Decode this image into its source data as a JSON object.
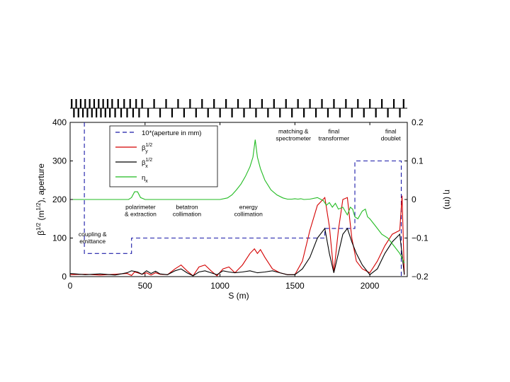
{
  "chart_data": {
    "type": "line",
    "xlabel": "S (m)",
    "ylabel": "β^1/2 (m^1/2), aperture",
    "y2label": "η (m)",
    "xlim": [
      0,
      2250
    ],
    "ylim": [
      0,
      400
    ],
    "y2lim": [
      -0.2,
      0.2
    ],
    "xticks": [
      0,
      500,
      1000,
      1500,
      2000
    ],
    "yticks": [
      0,
      100,
      200,
      300,
      400
    ],
    "y2ticks": [
      -0.2,
      -0.1,
      0,
      0.1,
      0.2
    ],
    "grid": false,
    "legend_position": "top-left",
    "legend": [
      {
        "text": "10*(aperture in mm)",
        "color": "#1a1aa8",
        "dash": true
      },
      {
        "text": "β",
        "sub": "y",
        "sup": "1/2",
        "color": "#d40000"
      },
      {
        "text": "β",
        "sub": "x",
        "sup": "1/2",
        "color": "#000000"
      },
      {
        "text": "η",
        "sub": "x",
        "color": "#22bb22"
      }
    ],
    "annotations": [
      {
        "lines": [
          "coupling &",
          "emittance"
        ],
        "x": 150,
        "y": 105
      },
      {
        "lines": [
          "polarimeter",
          "& extraction"
        ],
        "x": 470,
        "y": 175
      },
      {
        "lines": [
          "betatron",
          "collimation"
        ],
        "x": 780,
        "y": 175
      },
      {
        "lines": [
          "energy",
          "collimation"
        ],
        "x": 1190,
        "y": 175
      },
      {
        "lines": [
          "matching &",
          "spectrometer"
        ],
        "x": 1490,
        "y": 372
      },
      {
        "lines": [
          "final",
          "transformer"
        ],
        "x": 1760,
        "y": 372
      },
      {
        "lines": [
          "final",
          "doublet"
        ],
        "x": 2140,
        "y": 372
      }
    ],
    "series": [
      {
        "key": "aperture",
        "axis": "left",
        "color": "#1a1aa8",
        "dash": true,
        "x": [
          95,
          95,
          410,
          410,
          1700,
          1700,
          1900,
          1900,
          2210,
          2210
        ],
        "y": [
          400,
          60,
          60,
          100,
          100,
          125,
          125,
          300,
          300,
          0
        ]
      },
      {
        "key": "beta_y",
        "axis": "left",
        "color": "#d40000",
        "x": [
          0,
          100,
          200,
          300,
          380,
          410,
          430,
          450,
          480,
          510,
          540,
          570,
          600,
          650,
          700,
          740,
          780,
          820,
          860,
          900,
          940,
          980,
          1020,
          1060,
          1100,
          1150,
          1200,
          1230,
          1250,
          1270,
          1300,
          1350,
          1400,
          1450,
          1500,
          1550,
          1600,
          1650,
          1700,
          1730,
          1760,
          1790,
          1820,
          1850,
          1880,
          1910,
          1950,
          2000,
          2050,
          2100,
          2150,
          2200,
          2215,
          2230
        ],
        "y": [
          5,
          6,
          4,
          6,
          8,
          3,
          12,
          10,
          6,
          10,
          4,
          10,
          6,
          5,
          20,
          30,
          15,
          2,
          25,
          30,
          15,
          2,
          20,
          25,
          10,
          30,
          60,
          72,
          60,
          70,
          50,
          20,
          10,
          5,
          5,
          40,
          120,
          185,
          205,
          130,
          10,
          120,
          200,
          205,
          100,
          40,
          20,
          10,
          40,
          80,
          110,
          120,
          210,
          5
        ]
      },
      {
        "key": "beta_x",
        "axis": "left",
        "color": "#000000",
        "x": [
          0,
          100,
          200,
          300,
          380,
          410,
          450,
          480,
          510,
          540,
          570,
          600,
          650,
          700,
          740,
          780,
          820,
          860,
          900,
          940,
          980,
          1020,
          1060,
          1100,
          1150,
          1200,
          1250,
          1300,
          1350,
          1400,
          1450,
          1500,
          1550,
          1600,
          1650,
          1700,
          1730,
          1760,
          1790,
          1820,
          1850,
          1880,
          1910,
          1950,
          2000,
          2050,
          2100,
          2150,
          2200,
          2230
        ],
        "y": [
          8,
          5,
          7,
          4,
          10,
          15,
          12,
          6,
          15,
          8,
          14,
          7,
          5,
          15,
          20,
          10,
          2,
          12,
          15,
          10,
          5,
          15,
          12,
          10,
          12,
          15,
          10,
          12,
          15,
          10,
          5,
          5,
          20,
          50,
          100,
          125,
          60,
          10,
          60,
          110,
          125,
          90,
          60,
          30,
          5,
          20,
          60,
          90,
          110,
          5
        ]
      },
      {
        "key": "eta_x",
        "axis": "right",
        "color": "#22bb22",
        "x": [
          0,
          390,
          410,
          430,
          450,
          470,
          500,
          1000,
          1050,
          1080,
          1110,
          1140,
          1170,
          1200,
          1220,
          1235,
          1250,
          1270,
          1300,
          1340,
          1380,
          1420,
          1450,
          1480,
          1500,
          1520,
          1540,
          1560,
          1600,
          1650,
          1690,
          1710,
          1730,
          1750,
          1770,
          1790,
          1820,
          1850,
          1870,
          1885,
          1900,
          1920,
          1950,
          1970,
          1985,
          2000,
          2040,
          2080,
          2120,
          2160,
          2200,
          2230
        ],
        "y": [
          0,
          0,
          0.005,
          0.02,
          0.02,
          0.005,
          0,
          0,
          0.004,
          0.012,
          0.025,
          0.04,
          0.06,
          0.085,
          0.11,
          0.155,
          0.11,
          0.08,
          0.05,
          0.025,
          0.012,
          0.004,
          0.001,
          0.001,
          0.002,
          0.001,
          0.002,
          0.0,
          0.001,
          0.005,
          -0.003,
          -0.015,
          -0.008,
          -0.02,
          -0.01,
          -0.025,
          -0.02,
          -0.04,
          -0.02,
          -0.025,
          -0.045,
          -0.05,
          -0.03,
          -0.025,
          -0.045,
          -0.05,
          -0.07,
          -0.09,
          -0.1,
          -0.12,
          -0.14,
          -0.165
        ]
      }
    ],
    "lattice": {
      "x": [
        10,
        25,
        40,
        55,
        70,
        85,
        100,
        115,
        130,
        145,
        160,
        175,
        190,
        205,
        220,
        235,
        250,
        265,
        280,
        300,
        320,
        340,
        360,
        380,
        400,
        420,
        440,
        460,
        480,
        520,
        560,
        600,
        640,
        680,
        720,
        760,
        800,
        840,
        880,
        920,
        960,
        1000,
        1040,
        1080,
        1120,
        1160,
        1200,
        1240,
        1280,
        1320,
        1360,
        1400,
        1440,
        1480,
        1520,
        1560,
        1600,
        1640,
        1680,
        1720,
        1760,
        1800,
        1840,
        1880,
        1920,
        1960,
        2000,
        2040,
        2080,
        2120,
        2160,
        2200,
        2225
      ]
    }
  }
}
